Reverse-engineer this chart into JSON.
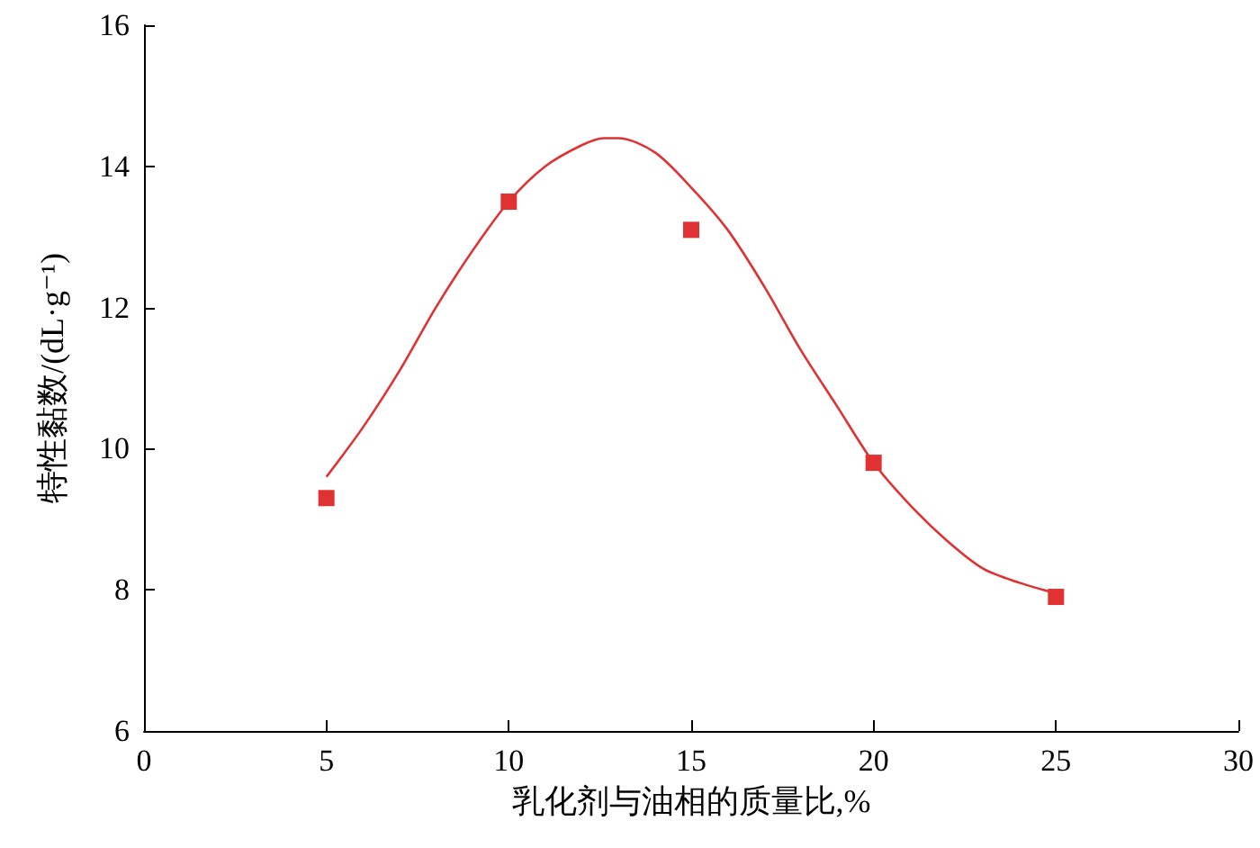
{
  "chart_data": {
    "type": "scatter",
    "xlabel": "乳化剂与油相的质量比,%",
    "ylabel": "特性黏数/(dL·g⁻¹)",
    "xlim": [
      0,
      30
    ],
    "xticks": [
      0,
      5,
      10,
      15,
      20,
      25,
      30
    ],
    "ylim": [
      6,
      16
    ],
    "yticks": [
      6,
      8,
      10,
      12,
      14,
      16
    ],
    "grid": false,
    "marker": "square",
    "series": [
      {
        "color": "#e03232",
        "x": [
          5,
          10,
          15,
          20,
          25
        ],
        "values": [
          9.3,
          13.5,
          13.1,
          9.8,
          7.9
        ]
      },
      {
        "type": "line",
        "color": "#e03232",
        "marker": "none",
        "line_style": "solid",
        "x": [
          5,
          6,
          7,
          8,
          9,
          10,
          11,
          12,
          12.6,
          13,
          14,
          15,
          16,
          17,
          18,
          19,
          20,
          21,
          22,
          23,
          24,
          25
        ],
        "values": [
          9.6,
          10.3,
          11.1,
          12.0,
          12.8,
          13.5,
          14.0,
          14.3,
          14.4,
          14.4,
          14.2,
          13.7,
          13.1,
          12.3,
          11.4,
          10.6,
          9.8,
          9.2,
          8.7,
          8.3,
          8.1,
          7.95
        ]
      }
    ]
  }
}
